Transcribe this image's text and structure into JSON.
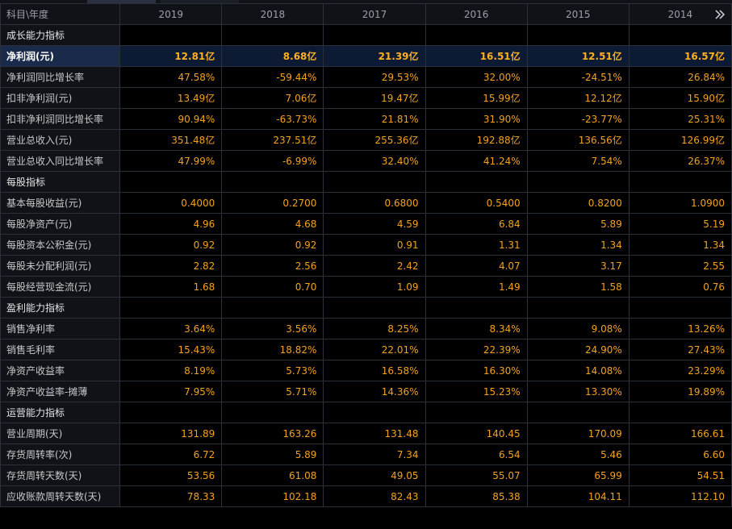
{
  "header": {
    "label": "科目\\年度",
    "years": [
      "2019",
      "2018",
      "2017",
      "2016",
      "2015",
      "2014"
    ]
  },
  "rows": [
    {
      "type": "section",
      "label": "成长能力指标"
    },
    {
      "type": "data",
      "label": "净利润(元)",
      "highlight": true,
      "values": [
        "12.81亿",
        "8.68亿",
        "21.39亿",
        "16.51亿",
        "12.51亿",
        "16.57亿"
      ]
    },
    {
      "type": "data",
      "label": "净利润同比增长率",
      "values": [
        "47.58%",
        "-59.44%",
        "29.53%",
        "32.00%",
        "-24.51%",
        "26.84%"
      ]
    },
    {
      "type": "data",
      "label": "扣非净利润(元)",
      "values": [
        "13.49亿",
        "7.06亿",
        "19.47亿",
        "15.99亿",
        "12.12亿",
        "15.90亿"
      ]
    },
    {
      "type": "data",
      "label": "扣非净利润同比增长率",
      "values": [
        "90.94%",
        "-63.73%",
        "21.81%",
        "31.90%",
        "-23.77%",
        "25.31%"
      ]
    },
    {
      "type": "data",
      "label": "营业总收入(元)",
      "values": [
        "351.48亿",
        "237.51亿",
        "255.36亿",
        "192.88亿",
        "136.56亿",
        "126.99亿"
      ]
    },
    {
      "type": "data",
      "label": "营业总收入同比增长率",
      "values": [
        "47.99%",
        "-6.99%",
        "32.40%",
        "41.24%",
        "7.54%",
        "26.37%"
      ]
    },
    {
      "type": "section",
      "label": "每股指标"
    },
    {
      "type": "data",
      "label": "基本每股收益(元)",
      "values": [
        "0.4000",
        "0.2700",
        "0.6800",
        "0.5400",
        "0.8200",
        "1.0900"
      ]
    },
    {
      "type": "data",
      "label": "每股净资产(元)",
      "values": [
        "4.96",
        "4.68",
        "4.59",
        "6.84",
        "5.89",
        "5.19"
      ]
    },
    {
      "type": "data",
      "label": "每股资本公积金(元)",
      "values": [
        "0.92",
        "0.92",
        "0.91",
        "1.31",
        "1.34",
        "1.34"
      ]
    },
    {
      "type": "data",
      "label": "每股未分配利润(元)",
      "values": [
        "2.82",
        "2.56",
        "2.42",
        "4.07",
        "3.17",
        "2.55"
      ]
    },
    {
      "type": "data",
      "label": "每股经营现金流(元)",
      "values": [
        "1.68",
        "0.70",
        "1.09",
        "1.49",
        "1.58",
        "0.76"
      ]
    },
    {
      "type": "section",
      "label": "盈利能力指标"
    },
    {
      "type": "data",
      "label": "销售净利率",
      "values": [
        "3.64%",
        "3.56%",
        "8.25%",
        "8.34%",
        "9.08%",
        "13.26%"
      ]
    },
    {
      "type": "data",
      "label": "销售毛利率",
      "values": [
        "15.43%",
        "18.82%",
        "22.01%",
        "22.39%",
        "24.90%",
        "27.43%"
      ]
    },
    {
      "type": "data",
      "label": "净资产收益率",
      "values": [
        "8.19%",
        "5.73%",
        "16.58%",
        "16.30%",
        "14.08%",
        "23.29%"
      ]
    },
    {
      "type": "data",
      "label": "净资产收益率-摊薄",
      "values": [
        "7.95%",
        "5.71%",
        "14.36%",
        "15.23%",
        "13.30%",
        "19.89%"
      ]
    },
    {
      "type": "section",
      "label": "运营能力指标"
    },
    {
      "type": "data",
      "label": "营业周期(天)",
      "values": [
        "131.89",
        "163.26",
        "131.48",
        "140.45",
        "170.09",
        "166.61"
      ]
    },
    {
      "type": "data",
      "label": "存货周转率(次)",
      "values": [
        "6.72",
        "5.89",
        "7.34",
        "6.54",
        "5.46",
        "6.60"
      ]
    },
    {
      "type": "data",
      "label": "存货周转天数(天)",
      "values": [
        "53.56",
        "61.08",
        "49.05",
        "55.07",
        "65.99",
        "54.51"
      ]
    },
    {
      "type": "data",
      "label": "应收账款周转天数(天)",
      "values": [
        "78.33",
        "102.18",
        "82.43",
        "85.38",
        "104.11",
        "112.10"
      ]
    }
  ],
  "icons": {
    "more": "double-chevron-right-icon"
  },
  "colors": {
    "value": "#f3a21c",
    "highlight_row": "#1a2a4a",
    "background": "#000000"
  }
}
